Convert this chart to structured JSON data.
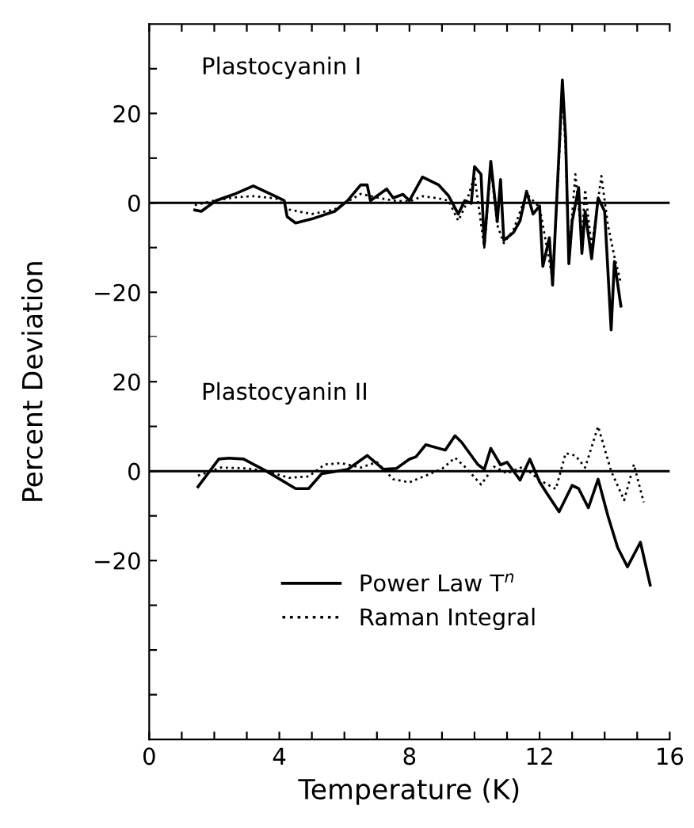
{
  "chart_data": [
    {
      "type": "line",
      "annotations": [
        "Plastocyanin I"
      ],
      "xlim": [
        0,
        16
      ],
      "xticks": [
        0,
        {
          "value": 1,
          "label": null
        },
        {
          "value": 2,
          "label": null
        },
        {
          "value": 3,
          "label": null
        },
        4,
        {
          "value": 5,
          "label": null
        },
        {
          "value": 6,
          "label": null
        },
        {
          "value": 7,
          "label": null
        },
        8,
        {
          "value": 9,
          "label": null
        },
        {
          "value": 10,
          "label": null
        },
        {
          "value": 11,
          "label": null
        },
        12,
        {
          "value": 13,
          "label": null
        },
        {
          "value": 14,
          "label": null
        },
        {
          "value": 15,
          "label": null
        },
        16
      ],
      "ylim": [
        -30,
        40
      ],
      "yticks": [
        {
          "value": 30,
          "label": null
        },
        20,
        {
          "value": 10,
          "label": null
        },
        0,
        {
          "value": -10,
          "label": null
        },
        -20,
        {
          "value": -30,
          "label": null
        }
      ],
      "tick_labels": "y",
      "ylabel": "Percent Deviation",
      "ref_lines": [
        {
          "axis": "y",
          "value": 0,
          "color": "#000000"
        }
      ],
      "series": [
        {
          "color": "#000000",
          "line_style": "solid",
          "x": [
            1.4,
            1.6,
            2.05,
            2.6,
            3.2,
            3.9,
            4.15,
            4.24,
            4.5,
            5.0,
            5.7,
            6.1,
            6.5,
            6.7,
            6.8,
            7.3,
            7.5,
            7.8,
            8.0,
            8.4,
            8.9,
            9.2,
            9.5,
            9.7,
            9.9,
            10.0,
            10.2,
            10.3,
            10.5,
            10.7,
            10.8,
            10.9,
            11.2,
            11.4,
            11.6,
            11.8,
            12.0,
            12.1,
            12.3,
            12.4,
            12.6,
            12.7,
            12.8,
            12.9,
            13.0,
            13.2,
            13.3,
            13.4,
            13.6,
            13.8,
            14.0,
            14.2,
            14.3,
            14.5
          ],
          "values": [
            -1.6,
            -1.9,
            0.5,
            1.9,
            3.8,
            1.4,
            0.5,
            -3.1,
            -4.5,
            -3.6,
            -1.9,
            0.5,
            4.0,
            4.0,
            0.5,
            3.1,
            1.1,
            1.9,
            0.5,
            5.8,
            4.0,
            1.6,
            -2.5,
            0.5,
            -0.1,
            8.1,
            6.4,
            -9.5,
            9.3,
            -4.2,
            5.2,
            -8.4,
            -6.6,
            -4.0,
            2.6,
            -2.5,
            -0.7,
            -14.2,
            -7.8,
            -18.4,
            11.6,
            27.5,
            14.6,
            -13.6,
            -4.2,
            3.4,
            -11.3,
            -1.9,
            -12.5,
            1.1,
            -1.9,
            -28.4,
            -13.1,
            -23.1
          ]
        },
        {
          "color": "#000000",
          "line_style": "dotted",
          "x": [
            1.4,
            2.0,
            2.6,
            3.2,
            3.9,
            4.3,
            5.0,
            5.7,
            6.1,
            6.5,
            7.0,
            7.5,
            8.0,
            8.4,
            8.9,
            9.2,
            9.5,
            9.7,
            10.0,
            10.3,
            10.5,
            10.7,
            10.9,
            11.2,
            11.6,
            12.0,
            12.4,
            12.6,
            12.7,
            12.8,
            12.9,
            13.1,
            13.3,
            13.4,
            13.6,
            13.9,
            14.1,
            14.3,
            14.5
          ],
          "values": [
            -0.5,
            0.5,
            1.2,
            1.5,
            1.0,
            -1.5,
            -2.5,
            -1.5,
            0.3,
            2.0,
            1.2,
            0.5,
            0.3,
            1.5,
            1.0,
            0.5,
            -4.0,
            -1.0,
            6.0,
            -10.0,
            8.0,
            -5.0,
            -9.0,
            -6.0,
            2.0,
            -1.0,
            -17.0,
            10.0,
            25.0,
            12.0,
            -12.0,
            6.4,
            -8.0,
            3.0,
            -10.0,
            6.0,
            -5.0,
            -12.0,
            -18.0
          ]
        }
      ]
    },
    {
      "type": "line",
      "annotations": [
        "Plastocyanin II"
      ],
      "xlabel": "Temperature (K)",
      "xlim": [
        0,
        16
      ],
      "xticks": [
        0,
        {
          "value": 1,
          "label": null
        },
        {
          "value": 2,
          "label": null
        },
        {
          "value": 3,
          "label": null
        },
        4,
        {
          "value": 5,
          "label": null
        },
        {
          "value": 6,
          "label": null
        },
        {
          "value": 7,
          "label": null
        },
        8,
        {
          "value": 9,
          "label": null
        },
        {
          "value": 10,
          "label": null
        },
        {
          "value": 11,
          "label": null
        },
        12,
        {
          "value": 13,
          "label": null
        },
        {
          "value": 14,
          "label": null
        },
        {
          "value": 15,
          "label": null
        },
        16
      ],
      "ylim": [
        -60,
        30
      ],
      "yticks": [
        20,
        {
          "value": 10,
          "label": null
        },
        0,
        {
          "value": -10,
          "label": null
        },
        -20,
        {
          "value": -30,
          "label": null
        },
        {
          "value": -40,
          "label": null
        },
        {
          "value": -50,
          "label": null
        }
      ],
      "legend": "bottom",
      "ref_lines": [
        {
          "axis": "y",
          "value": 0,
          "color": "#000000"
        }
      ],
      "series": [
        {
          "name": "Power Law T$^{n}$",
          "color": "#000000",
          "line_style": "solid",
          "x": [
            1.5,
            2.14,
            2.45,
            2.9,
            3.6,
            4.5,
            4.9,
            5.3,
            6.1,
            6.7,
            7.2,
            7.6,
            8.0,
            8.2,
            8.5,
            9.1,
            9.4,
            9.6,
            10.1,
            10.3,
            10.5,
            10.8,
            11.0,
            11.4,
            11.7,
            12.0,
            12.2,
            12.6,
            13.0,
            13.2,
            13.5,
            13.8,
            14.1,
            14.4,
            14.7,
            15.1,
            15.4
          ],
          "values": [
            -3.5,
            2.7,
            2.9,
            2.7,
            0,
            -3.9,
            -3.9,
            -0.6,
            0.4,
            3.5,
            0.4,
            0.6,
            2.7,
            3.2,
            5.9,
            4.7,
            7.9,
            6.5,
            1.5,
            0.4,
            5.1,
            1.4,
            2.0,
            -2.0,
            2.7,
            -2.4,
            -4.7,
            -9.1,
            -3.2,
            -3.9,
            -8.2,
            -1.8,
            -10.0,
            -17.1,
            -21.4,
            -15.9,
            -25.5
          ]
        },
        {
          "name": "Raman Integral",
          "color": "#000000",
          "line_style": "dotted",
          "x": [
            1.5,
            2.2,
            3.0,
            3.6,
            4.3,
            4.9,
            5.4,
            5.9,
            6.5,
            7.0,
            7.5,
            8.0,
            8.5,
            9.0,
            9.4,
            9.7,
            10.2,
            10.6,
            11.0,
            11.5,
            12.0,
            12.5,
            12.8,
            13.1,
            13.4,
            13.8,
            14.2,
            14.6,
            14.9,
            15.2
          ],
          "values": [
            -1.0,
            0.8,
            0.6,
            0,
            -1.5,
            -1.2,
            1.5,
            1.8,
            0.8,
            2.0,
            -1.8,
            -2.5,
            -1.0,
            0.5,
            3.0,
            1.0,
            -3.0,
            1.0,
            -0.5,
            1.0,
            -2.0,
            -4.0,
            4.0,
            3.5,
            0.8,
            10.0,
            0,
            -6.5,
            1.5,
            -7.0
          ]
        }
      ]
    }
  ]
}
